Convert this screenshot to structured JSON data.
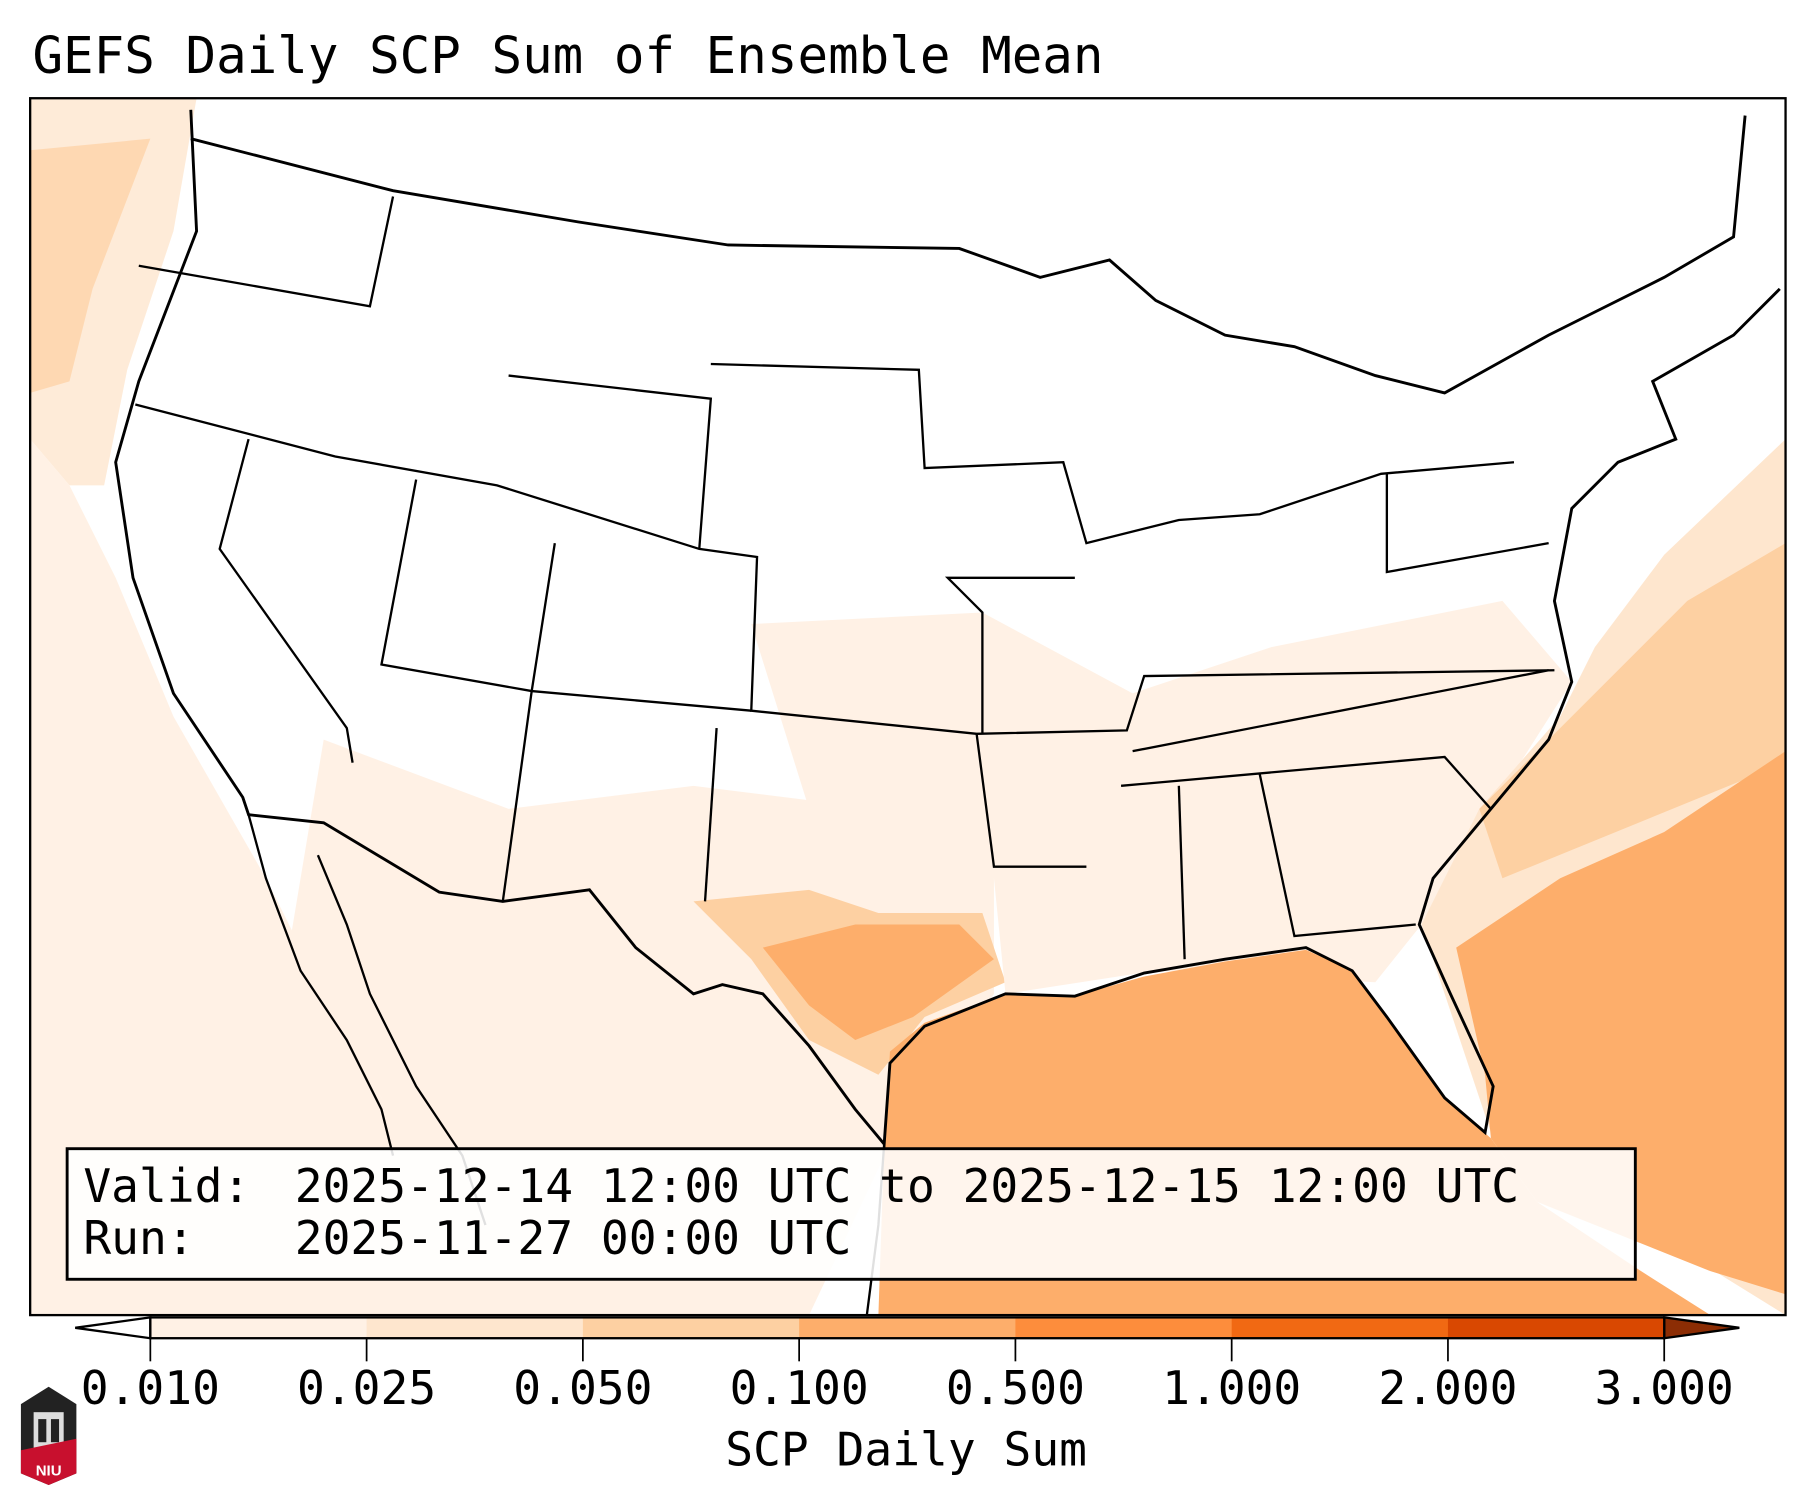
{
  "chart_data": {
    "type": "heatmap",
    "title": "GEFS Daily SCP Sum of Ensemble Mean",
    "projection_region": "CONUS",
    "valid_label": "Valid:",
    "valid_text": "2025-12-14 12:00 UTC to 2025-12-15 12:00 UTC",
    "run_label": "Run:",
    "run_text": "2025-11-27 00:00 UTC",
    "colorbar": {
      "label": "SCP Daily Sum",
      "ticks": [
        "0.010",
        "0.025",
        "0.050",
        "0.100",
        "0.500",
        "1.000",
        "2.000",
        "3.000"
      ],
      "levels": [
        0.01,
        0.025,
        0.05,
        0.1,
        0.5,
        1.0,
        2.0,
        3.0
      ],
      "colors": [
        "#fff1e5",
        "#fee6ce",
        "#fdd0a2",
        "#fdae6b",
        "#fd8d3c",
        "#f16913",
        "#d94801"
      ],
      "under_color": "#ffffff",
      "over_color": "#8c2d04",
      "extend": "both"
    },
    "regions": [
      {
        "name": "Gulf of Mexico",
        "value_range": [
          0.1,
          0.5
        ]
      },
      {
        "name": "Western Atlantic off Southeast coast",
        "value_range": [
          0.1,
          0.5
        ]
      },
      {
        "name": "South-central Texas",
        "value_range": [
          0.05,
          0.5
        ]
      },
      {
        "name": "Pacific off Pacific Northwest",
        "value_range": [
          0.025,
          0.1
        ]
      }
    ]
  },
  "logo": {
    "text": "NIU"
  }
}
